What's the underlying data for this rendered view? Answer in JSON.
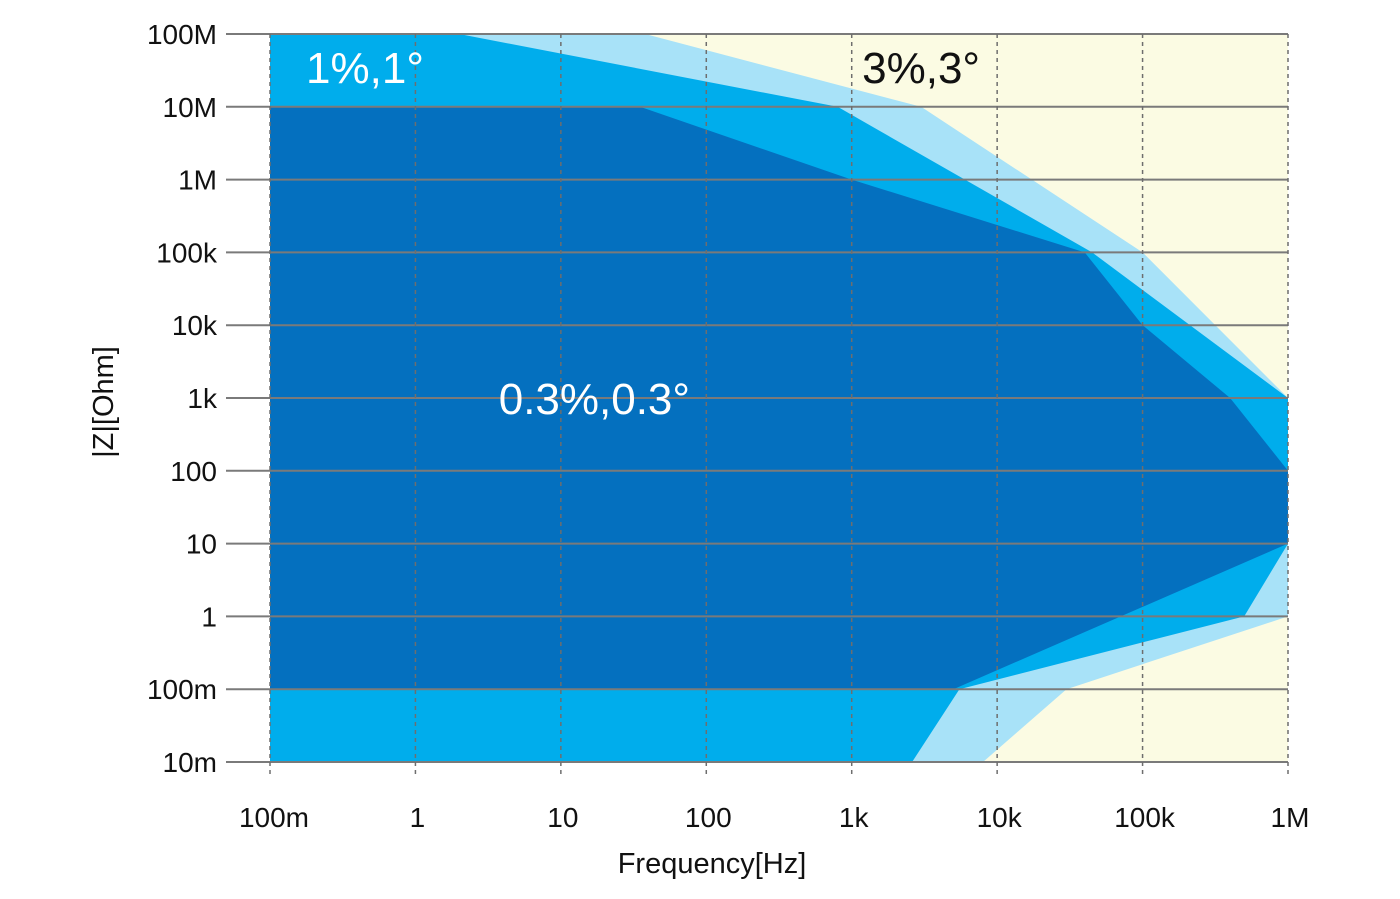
{
  "chart_data": {
    "type": "area",
    "title": "",
    "xlabel": "Frequency[Hz]",
    "ylabel": "|Z|[Ohm]",
    "xscale": "log",
    "yscale": "log",
    "xlim": [
      0.1,
      1000000
    ],
    "ylim": [
      0.01,
      100000000
    ],
    "x_ticks": [
      {
        "value": 0.1,
        "label": "100m"
      },
      {
        "value": 1,
        "label": "1"
      },
      {
        "value": 10,
        "label": "10"
      },
      {
        "value": 100,
        "label": "100"
      },
      {
        "value": 1000,
        "label": "1k"
      },
      {
        "value": 10000,
        "label": "10k"
      },
      {
        "value": 100000,
        "label": "100k"
      },
      {
        "value": 1000000,
        "label": "1M"
      }
    ],
    "y_ticks": [
      {
        "value": 100000000,
        "label": "100M"
      },
      {
        "value": 10000000,
        "label": "10M"
      },
      {
        "value": 1000000,
        "label": "1M"
      },
      {
        "value": 100000,
        "label": "100k"
      },
      {
        "value": 10000,
        "label": "10k"
      },
      {
        "value": 1000,
        "label": "1k"
      },
      {
        "value": 100,
        "label": "100"
      },
      {
        "value": 10,
        "label": "10"
      },
      {
        "value": 1,
        "label": "1"
      },
      {
        "value": 0.1,
        "label": "100m"
      },
      {
        "value": 0.01,
        "label": "10m"
      }
    ],
    "background_color": "#fbfbe3",
    "series": [
      {
        "name": "3%,3°",
        "label": "3%,3°",
        "label_color": "#111111",
        "label_pos": [
          3000,
          35000000
        ],
        "color": "#a8e2f8",
        "polygon": [
          [
            0.1,
            100000000
          ],
          [
            38,
            100000000
          ],
          [
            3000,
            10000000
          ],
          [
            100000,
            100000
          ],
          [
            1000000,
            1000
          ],
          [
            1000000,
            1
          ],
          [
            30000,
            0.1
          ],
          [
            8000,
            0.01
          ],
          [
            0.1,
            0.01
          ]
        ]
      },
      {
        "name": "1%,1°",
        "label": "1%,1°",
        "label_color": "#ffffff",
        "label_pos": [
          0.45,
          35000000
        ],
        "color": "#00adec",
        "polygon": [
          [
            0.1,
            100000000
          ],
          [
            2,
            100000000
          ],
          [
            800,
            10000000
          ],
          [
            45000,
            100000
          ],
          [
            1000000,
            1000
          ],
          [
            1000000,
            10
          ],
          [
            500000,
            1
          ],
          [
            5500,
            0.1
          ],
          [
            2600,
            0.01
          ],
          [
            0.1,
            0.01
          ]
        ]
      },
      {
        "name": "0.3%,0.3°",
        "label": "0.3%,0.3°",
        "label_color": "#ffffff",
        "label_pos": [
          17,
          1000
        ],
        "color": "#0470bf",
        "polygon": [
          [
            0.1,
            10000000
          ],
          [
            35,
            10000000
          ],
          [
            1000,
            1000000
          ],
          [
            40000,
            100000
          ],
          [
            100000,
            10000
          ],
          [
            400000,
            1000
          ],
          [
            1000000,
            100
          ],
          [
            1000000,
            10
          ],
          [
            5000,
            0.1
          ],
          [
            0.1,
            0.1
          ]
        ]
      }
    ]
  }
}
